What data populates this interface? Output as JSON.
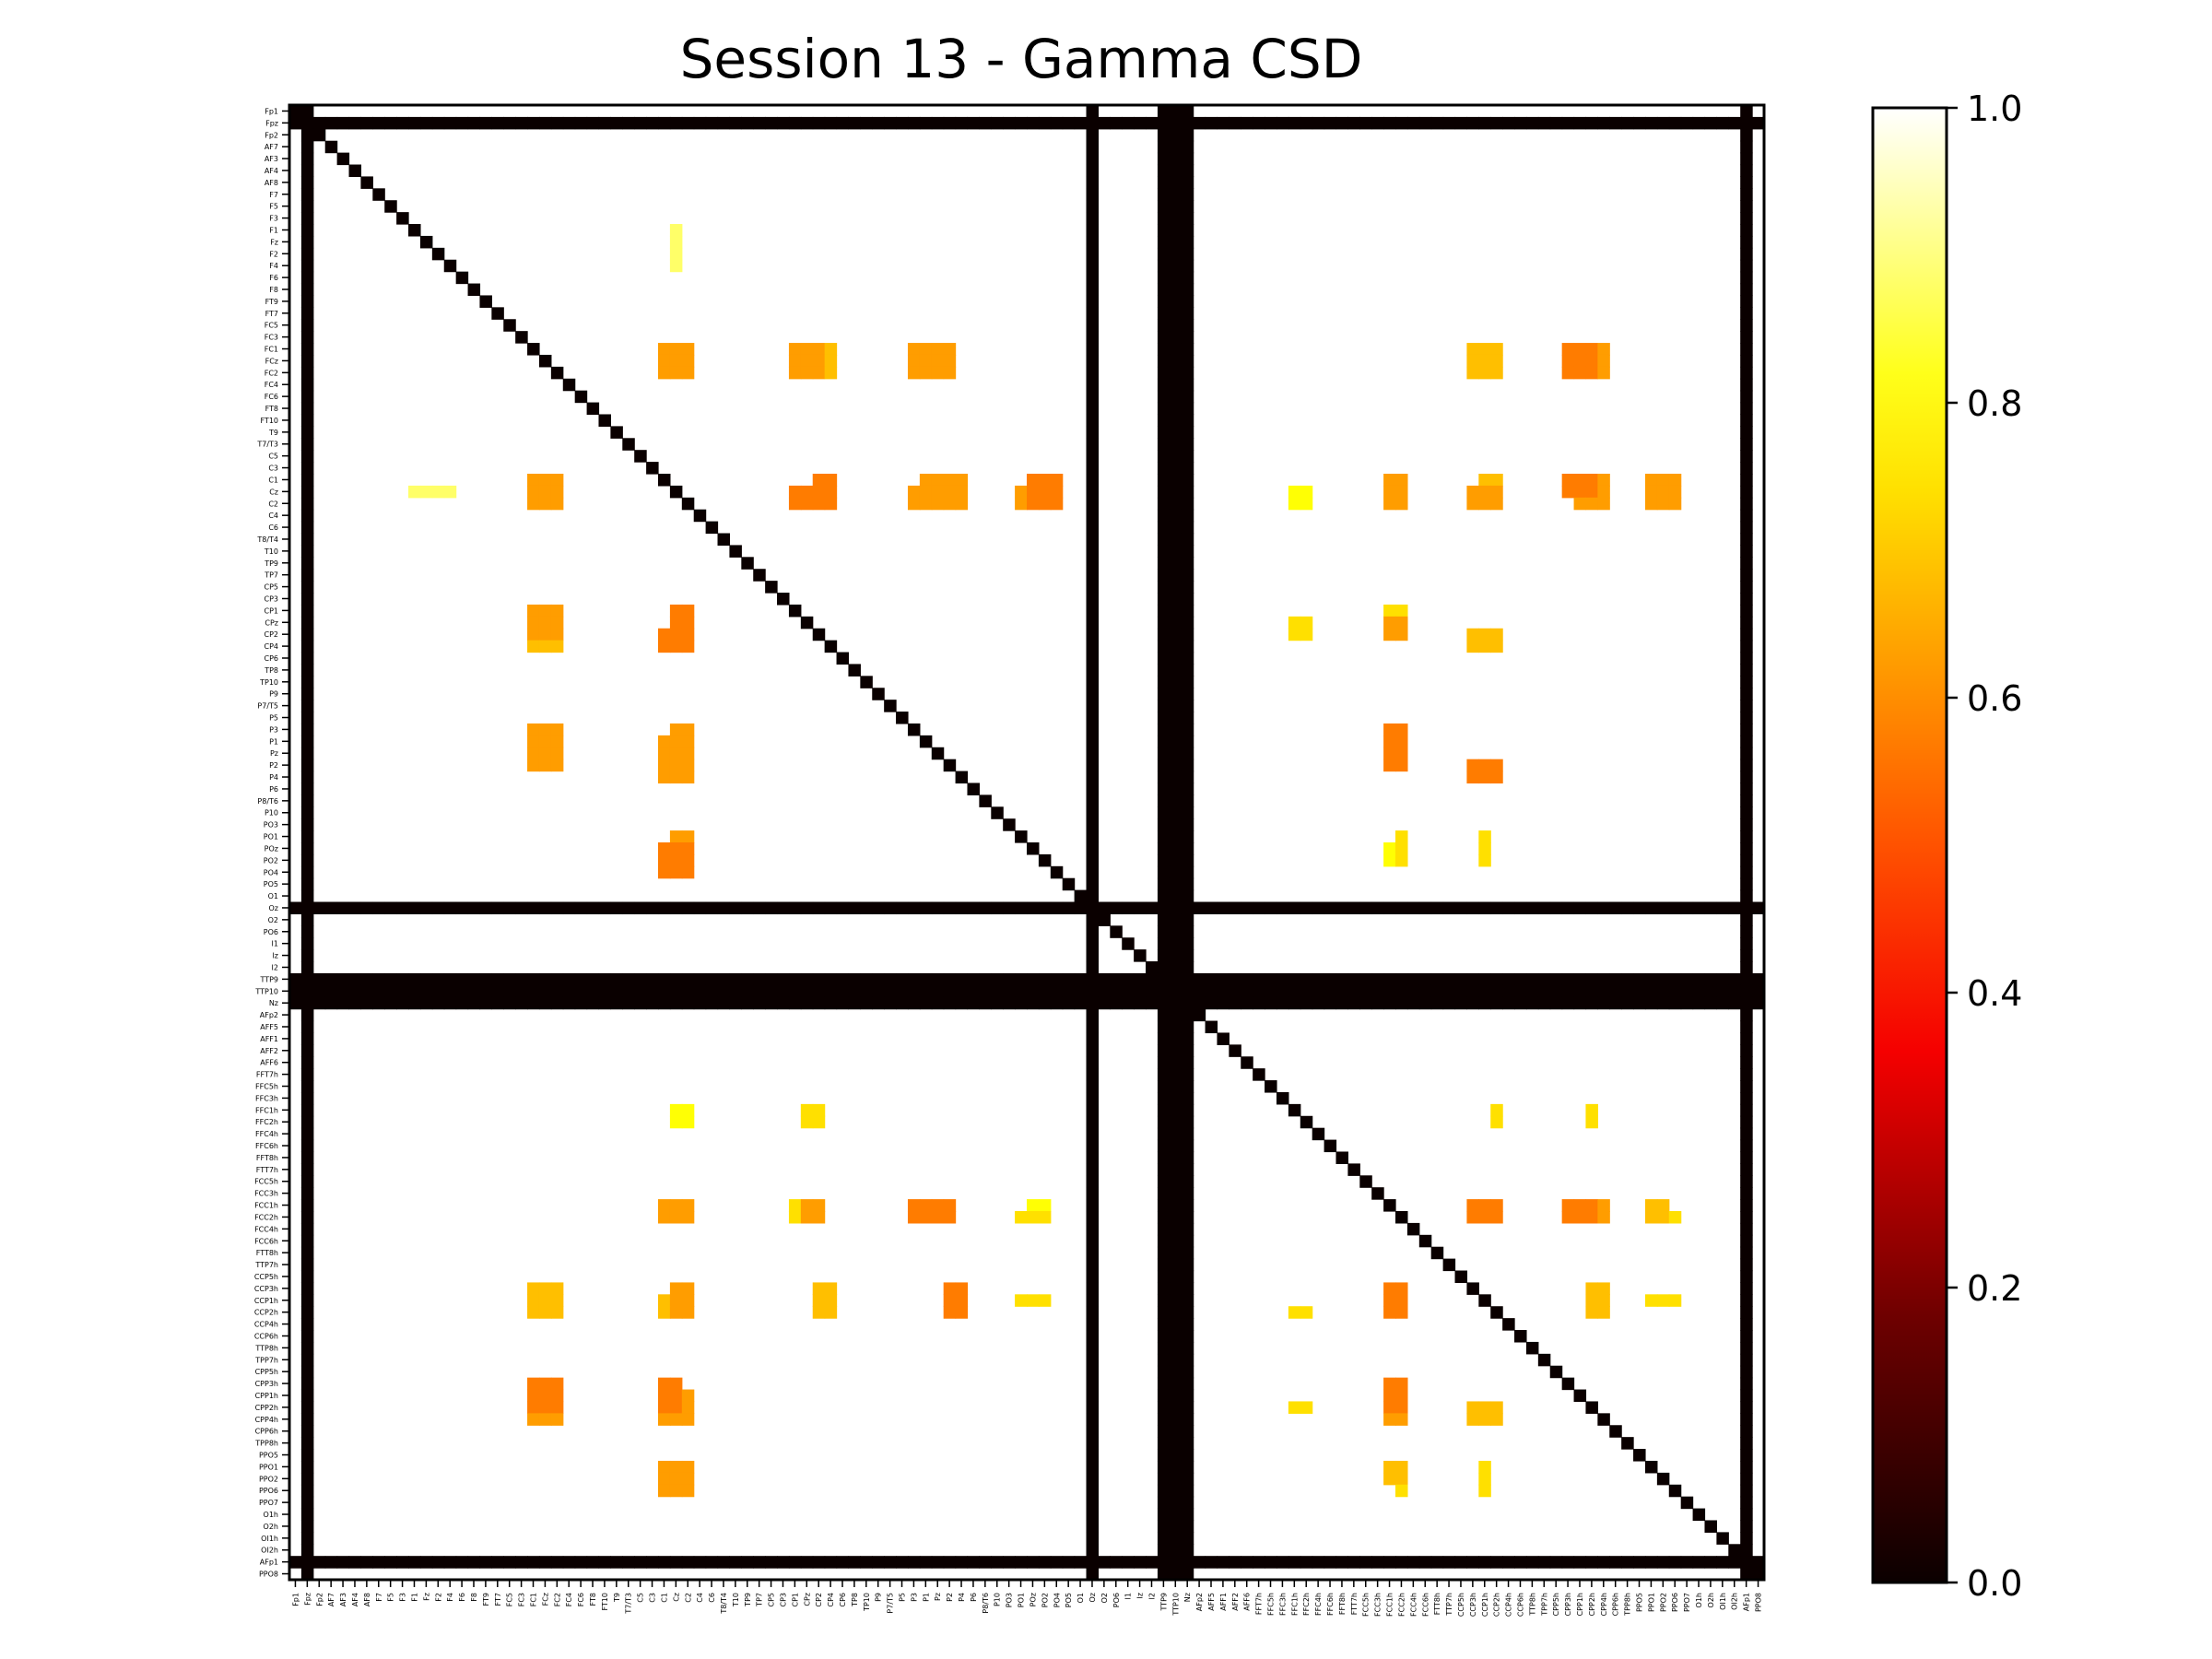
{
  "chart_data": {
    "type": "heatmap",
    "title": "Session 13 - Gamma CSD",
    "xlabel": "",
    "ylabel": "",
    "channels": [
      "Fp1",
      "Fpz",
      "Fp2",
      "AF7",
      "AF3",
      "AF4",
      "AF8",
      "F7",
      "F5",
      "F3",
      "F1",
      "Fz",
      "F2",
      "F4",
      "F6",
      "F8",
      "FT9",
      "FT7",
      "FC5",
      "FC3",
      "FC1",
      "FCz",
      "FC2",
      "FC4",
      "FC6",
      "FT8",
      "FT10",
      "T9",
      "T7/T3",
      "C5",
      "C3",
      "C1",
      "Cz",
      "C2",
      "C4",
      "C6",
      "T8/T4",
      "T10",
      "TP9",
      "TP7",
      "CP5",
      "CP3",
      "CP1",
      "CPz",
      "CP2",
      "CP4",
      "CP6",
      "TP8",
      "TP10",
      "P9",
      "P7/T5",
      "P5",
      "P3",
      "P1",
      "Pz",
      "P2",
      "P4",
      "P6",
      "P8/T6",
      "P10",
      "PO3",
      "PO1",
      "POz",
      "PO2",
      "PO4",
      "PO5",
      "O1",
      "Oz",
      "O2",
      "PO6",
      "I1",
      "Iz",
      "I2",
      "TTP9",
      "TTP10",
      "Nz",
      "AFp2",
      "AFF5",
      "AFF1",
      "AFF2",
      "AFF6",
      "FFT7h",
      "FFC5h",
      "FFC3h",
      "FFC1h",
      "FFC2h",
      "FFC4h",
      "FFC6h",
      "FFT8h",
      "FTT7h",
      "FCC5h",
      "FCC3h",
      "FCC1h",
      "FCC2h",
      "FCC4h",
      "FCC6h",
      "FTT8h",
      "TTP7h",
      "CCP5h",
      "CCP3h",
      "CCP1h",
      "CCP2h",
      "CCP4h",
      "CCP6h",
      "TTP8h",
      "TPP7h",
      "CPP5h",
      "CPP3h",
      "CPP1h",
      "CPP2h",
      "CPP4h",
      "CPP6h",
      "TPP8h",
      "PPO5",
      "PPO1",
      "PPO2",
      "PPO6",
      "PPO7",
      "O1h",
      "O2h",
      "OI1h",
      "OI2h",
      "AFp1",
      "PPO8"
    ],
    "zero_channels": [
      "Fpz",
      "Oz",
      "TTP9",
      "TTP10",
      "Nz",
      "AFp1"
    ],
    "diagonal_value": 0,
    "default_value": 1.0,
    "colormap": "hot",
    "vmin": 0.0,
    "vmax": 1.0,
    "colorbar_ticks": [
      "0.0",
      "0.2",
      "0.4",
      "0.6",
      "0.8",
      "1.0"
    ],
    "clusters": [
      {
        "rows": [
          "F1",
          "Fz",
          "F2",
          "F4"
        ],
        "cols": [
          "Cz"
        ],
        "value": 0.85
      },
      {
        "rows": [
          "FC1",
          "FCz",
          "FC2"
        ],
        "cols": [
          "C1",
          "Cz",
          "C2"
        ],
        "value": 0.6
      },
      {
        "rows": [
          "FC1",
          "FCz",
          "FC2"
        ],
        "cols": [
          "CPz",
          "CP2",
          "CP4"
        ],
        "value": 0.65
      },
      {
        "rows": [
          "FC1",
          "FCz",
          "FC2"
        ],
        "cols": [
          "P1",
          "Pz",
          "P2"
        ],
        "value": 0.7
      },
      {
        "rows": [
          "FC1",
          "FCz",
          "FC2"
        ],
        "cols": [
          "CCP1h",
          "CCP2h"
        ],
        "value": 0.65
      },
      {
        "rows": [
          "FC1",
          "FCz",
          "FC2"
        ],
        "cols": [
          "CPP1h",
          "CPP2h",
          "CPP4h"
        ],
        "value": 0.6
      },
      {
        "rows": [
          "C1",
          "Cz",
          "C2"
        ],
        "cols": [
          "FC1",
          "FCz",
          "FC2"
        ],
        "value": 0.6
      },
      {
        "rows": [
          "C1",
          "Cz",
          "C2"
        ],
        "cols": [
          "CP2",
          "CP4"
        ],
        "value": 0.55
      },
      {
        "rows": [
          "C1",
          "Cz",
          "C2"
        ],
        "cols": [
          "P1",
          "Pz",
          "P2",
          "P4"
        ],
        "value": 0.6
      },
      {
        "rows": [
          "C1",
          "Cz",
          "C2"
        ],
        "cols": [
          "POz",
          "PO2",
          "PO4"
        ],
        "value": 0.55
      },
      {
        "rows": [
          "C1",
          "Cz",
          "C2"
        ],
        "cols": [
          "FCC1h",
          "FCC2h"
        ],
        "value": 0.6
      },
      {
        "rows": [
          "C1",
          "Cz",
          "C2"
        ],
        "cols": [
          "CCP1h",
          "CCP2h"
        ],
        "value": 0.65
      },
      {
        "rows": [
          "C1",
          "Cz",
          "C2"
        ],
        "cols": [
          "CPP1h",
          "CPP2h",
          "CPP4h"
        ],
        "value": 0.6
      },
      {
        "rows": [
          "C1",
          "Cz",
          "C2"
        ],
        "cols": [
          "PPO1",
          "PPO2",
          "PPO6"
        ],
        "value": 0.6
      },
      {
        "rows": [
          "CP1",
          "CPz",
          "CP2"
        ],
        "cols": [
          "FC1",
          "FCz",
          "FC2"
        ],
        "value": 0.6
      },
      {
        "rows": [
          "CP1",
          "CPz",
          "CP2"
        ],
        "cols": [
          "Cz",
          "C2"
        ],
        "value": 0.55
      },
      {
        "rows": [
          "CP1",
          "CPz",
          "CP2"
        ],
        "cols": [
          "FCC1h",
          "FCC2h"
        ],
        "value": 0.7
      },
      {
        "rows": [
          "P3",
          "P1",
          "Pz",
          "P2"
        ],
        "cols": [
          "FC1",
          "FCz",
          "FC2"
        ],
        "value": 0.6
      },
      {
        "rows": [
          "P3",
          "P1",
          "Pz",
          "P2"
        ],
        "cols": [
          "Cz",
          "C2"
        ],
        "value": 0.6
      },
      {
        "rows": [
          "P3",
          "P1",
          "Pz",
          "P2"
        ],
        "cols": [
          "FCC1h",
          "FCC2h"
        ],
        "value": 0.55
      },
      {
        "rows": [
          "PO1",
          "POz",
          "PO2"
        ],
        "cols": [
          "Cz",
          "C2"
        ],
        "value": 0.6
      },
      {
        "rows": [
          "PO1",
          "POz",
          "PO2"
        ],
        "cols": [
          "FCC2h",
          "CCP1h"
        ],
        "value": 0.7
      },
      {
        "rows": [
          "FFC1h",
          "FFC2h"
        ],
        "cols": [
          "Cz",
          "C2"
        ],
        "value": 0.75
      },
      {
        "rows": [
          "FFC1h",
          "FFC2h"
        ],
        "cols": [
          "CPz",
          "CP2"
        ],
        "value": 0.7
      },
      {
        "rows": [
          "FFC1h",
          "FFC2h"
        ],
        "cols": [
          "CCP2h"
        ],
        "value": 0.7
      },
      {
        "rows": [
          "FFC1h",
          "FFC2h"
        ],
        "cols": [
          "CPP2h"
        ],
        "value": 0.7
      },
      {
        "rows": [
          "FCC1h",
          "FCC2h"
        ],
        "cols": [
          "Cz",
          "C2"
        ],
        "value": 0.65
      },
      {
        "rows": [
          "FCC1h",
          "FCC2h"
        ],
        "cols": [
          "CPz",
          "CP2"
        ],
        "value": 0.6
      },
      {
        "rows": [
          "FCC1h",
          "FCC2h"
        ],
        "cols": [
          "P1",
          "Pz",
          "P2"
        ],
        "value": 0.55
      },
      {
        "rows": [
          "FCC1h",
          "FCC2h"
        ],
        "cols": [
          "POz",
          "PO2"
        ],
        "value": 0.75
      },
      {
        "rows": [
          "FCC1h",
          "FCC2h"
        ],
        "cols": [
          "CCP1h",
          "CCP2h"
        ],
        "value": 0.6
      },
      {
        "rows": [
          "FCC1h",
          "FCC2h"
        ],
        "cols": [
          "CPP1h",
          "CPP2h",
          "CPP4h"
        ],
        "value": 0.6
      },
      {
        "rows": [
          "FCC1h",
          "FCC2h"
        ],
        "cols": [
          "PPO1",
          "PPO2"
        ],
        "value": 0.65
      },
      {
        "rows": [
          "CCP3h",
          "CCP1h",
          "CCP2h"
        ],
        "cols": [
          "FC1",
          "FCz",
          "FC2"
        ],
        "value": 0.65
      },
      {
        "rows": [
          "CCP3h",
          "CCP1h",
          "CCP2h"
        ],
        "cols": [
          "Cz",
          "C2"
        ],
        "value": 0.6
      },
      {
        "rows": [
          "CCP3h",
          "CCP1h",
          "CCP2h"
        ],
        "cols": [
          "CP2",
          "CP4"
        ],
        "value": 0.65
      },
      {
        "rows": [
          "CCP3h",
          "CCP1h",
          "CCP2h"
        ],
        "cols": [
          "P2",
          "P4"
        ],
        "value": 0.55
      },
      {
        "rows": [
          "CCP3h",
          "CCP1h",
          "CCP2h"
        ],
        "cols": [
          "FCC1h",
          "FCC2h"
        ],
        "value": 0.55
      },
      {
        "rows": [
          "CCP3h",
          "CCP1h",
          "CCP2h"
        ],
        "cols": [
          "CPP2h",
          "CPP4h"
        ],
        "value": 0.65
      },
      {
        "rows": [
          "CPP3h",
          "CPP1h",
          "CPP2h"
        ],
        "cols": [
          "FC1",
          "FCz",
          "FC2"
        ],
        "value": 0.55
      },
      {
        "rows": [
          "CPP3h",
          "CPP1h",
          "CPP2h"
        ],
        "cols": [
          "C1",
          "Cz"
        ],
        "value": 0.55
      },
      {
        "rows": [
          "CPP3h",
          "CPP1h",
          "CPP2h"
        ],
        "cols": [
          "FCC1h",
          "FCC2h"
        ],
        "value": 0.55
      },
      {
        "rows": [
          "PPO1",
          "PPO2",
          "PPO6"
        ],
        "cols": [
          "Cz",
          "C2"
        ],
        "value": 0.6
      },
      {
        "rows": [
          "PPO1",
          "PPO2",
          "PPO6"
        ],
        "cols": [
          "FCC2h",
          "CCP1h"
        ],
        "value": 0.7
      }
    ]
  }
}
